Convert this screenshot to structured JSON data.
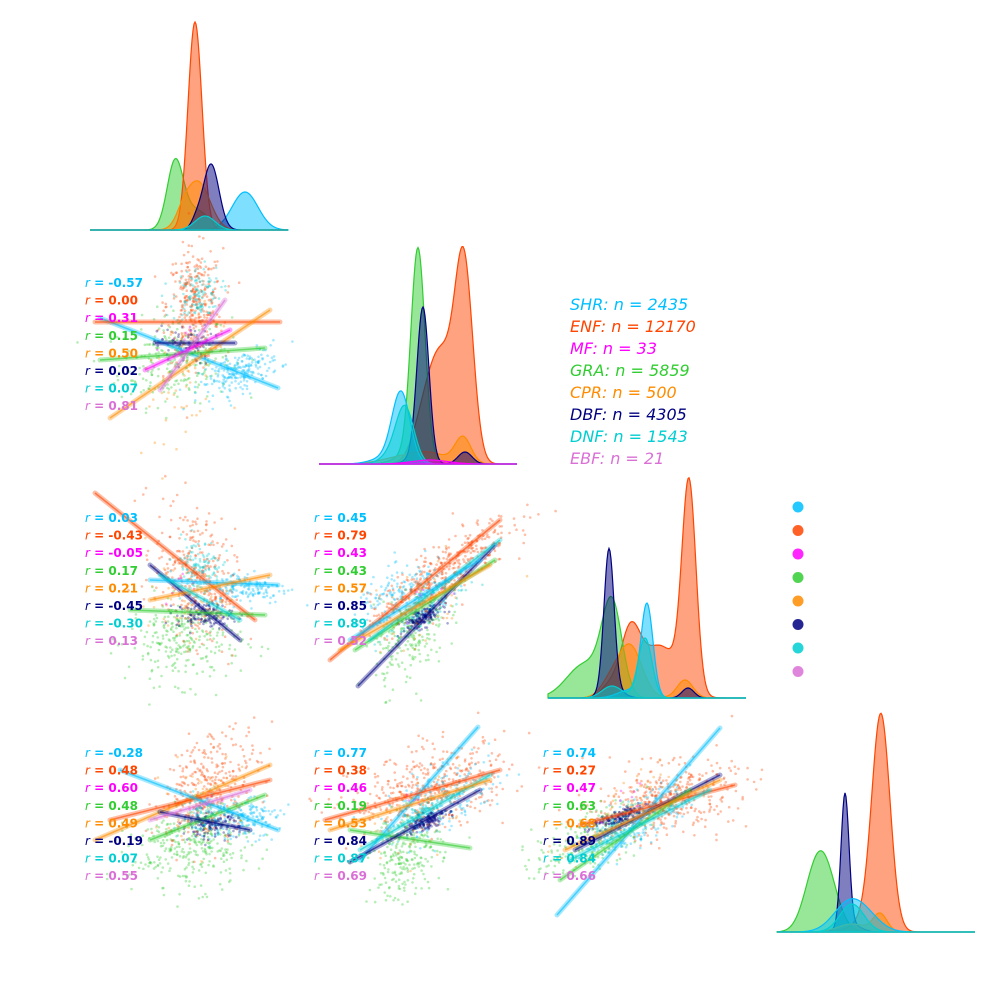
{
  "chart_data": {
    "type": "pairplot",
    "groups": [
      {
        "name": "SHR",
        "n": 2435,
        "color": "#00bfff"
      },
      {
        "name": "ENF",
        "n": 12170,
        "color": "#ff4500"
      },
      {
        "name": "MF",
        "n": 33,
        "color": "#ff00ff"
      },
      {
        "name": "GRA",
        "n": 5859,
        "color": "#32cd32"
      },
      {
        "name": "CPR",
        "n": 500,
        "color": "#ff8c00"
      },
      {
        "name": "DBF",
        "n": 4305,
        "color": "#000080"
      },
      {
        "name": "DNF",
        "n": 1543,
        "color": "#00ced1"
      },
      {
        "name": "EBF",
        "n": 21,
        "color": "#da70d6"
      }
    ],
    "legend_labels": [
      "SHR: n = 2435",
      "ENF: n = 12170",
      "MF: n = 33",
      "GRA: n = 5859",
      "CPR: n = 500",
      "DBF: n = 4305",
      "DNF: n = 1543",
      "EBF: n = 21"
    ],
    "r_prefix": "r",
    "correlations": [
      {
        "row": 1,
        "col": 0,
        "r": [
          "-0.57",
          "0.00",
          "0.31",
          "0.15",
          "0.50",
          "0.02",
          "0.07",
          "0.81"
        ]
      },
      {
        "row": 2,
        "col": 0,
        "r": [
          "0.03",
          "-0.43",
          "-0.05",
          "0.17",
          "0.21",
          "-0.45",
          "-0.30",
          "0.13"
        ]
      },
      {
        "row": 2,
        "col": 1,
        "r": [
          "0.45",
          "0.79",
          "0.43",
          "0.43",
          "0.57",
          "0.85",
          "0.89",
          "0.52"
        ]
      },
      {
        "row": 3,
        "col": 0,
        "r": [
          "-0.28",
          "0.48",
          "0.60",
          "0.48",
          "0.49",
          "-0.19",
          "0.07",
          "0.55"
        ]
      },
      {
        "row": 3,
        "col": 1,
        "r": [
          "0.77",
          "0.38",
          "0.46",
          "0.19",
          "0.53",
          "0.84",
          "0.87",
          "0.69"
        ]
      },
      {
        "row": 3,
        "col": 2,
        "r": [
          "0.74",
          "0.27",
          "0.47",
          "0.63",
          "0.68",
          "0.89",
          "0.84",
          "0.66"
        ]
      }
    ]
  }
}
